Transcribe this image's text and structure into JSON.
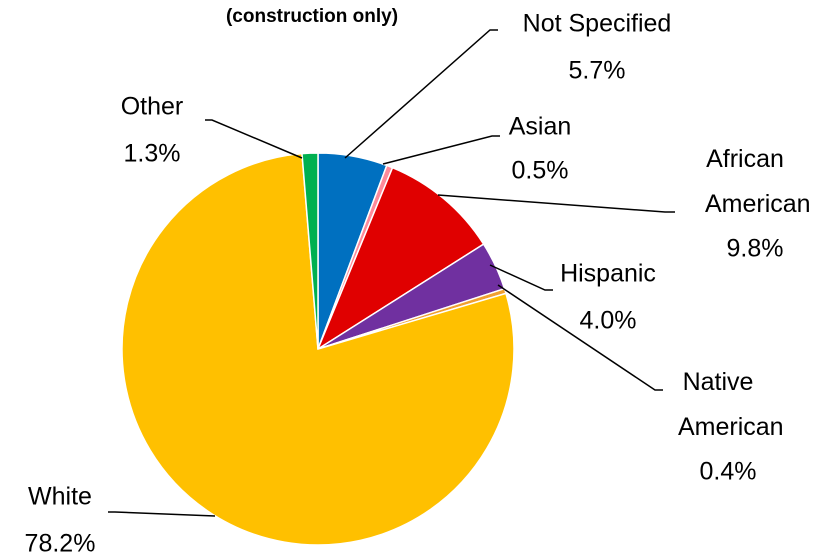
{
  "chart_data": {
    "type": "pie",
    "title": "(construction only)",
    "categories": [
      "Not Specified",
      "Asian",
      "African American",
      "Hispanic",
      "Native American",
      "White",
      "Other"
    ],
    "values": [
      5.7,
      0.5,
      9.8,
      4.0,
      0.4,
      78.2,
      1.3
    ],
    "value_labels": [
      "5.7%",
      "0.5%",
      "9.8%",
      "4.0%",
      "0.4%",
      "78.2%",
      "1.3%"
    ],
    "colors": [
      "#0070c0",
      "#ff8a9a",
      "#e00000",
      "#7030a0",
      "#f0a030",
      "#ffc000",
      "#00b050"
    ]
  }
}
